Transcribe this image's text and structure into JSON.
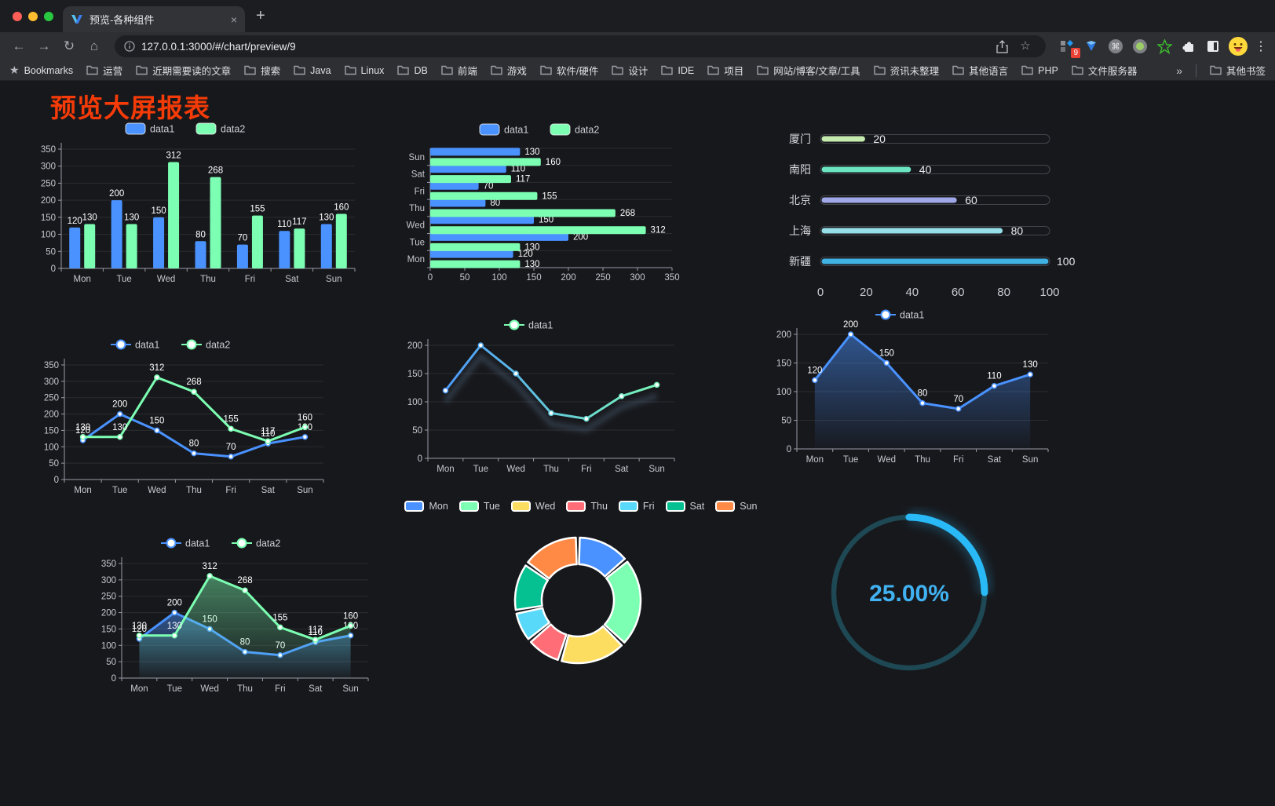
{
  "browser": {
    "tab_title": "预览-各种组件",
    "url": "127.0.0.1:3000/#/chart/preview/9",
    "extension_badge": "9",
    "bookmarks_label": "Bookmarks",
    "bookmarks": [
      "运营",
      "近期需要读的文章",
      "搜索",
      "Java",
      "Linux",
      "DB",
      "前端",
      "游戏",
      "软件/硬件",
      "设计",
      "IDE",
      "项目",
      "网站/博客/文章/工具",
      "资讯未整理",
      "其他语言",
      "PHP",
      "文件服务器"
    ],
    "bookmarks_overflow": "»",
    "other_bookmarks": "其他书签",
    "icons": {
      "close": "×",
      "new_tab": "+",
      "back": "←",
      "forward": "→",
      "reload": "↻",
      "home": "⌂",
      "star": "☆",
      "bookmark_star": "★",
      "kebab": "⋮"
    }
  },
  "page": {
    "title": "预览大屏报表",
    "title_color": "#f53b08"
  },
  "palette": {
    "blue": "#4992ff",
    "green": "#7cffb2",
    "axis_text": "#c6c8cf",
    "axis_line": "#9a9ca6",
    "grid": "rgba(255,255,255,0.09)",
    "value_label": "#ffffff",
    "legend_text": "#cbcdd4"
  },
  "chart_data": [
    {
      "id": "bar-vertical",
      "type": "bar",
      "categories": [
        "Mon",
        "Tue",
        "Wed",
        "Thu",
        "Fri",
        "Sat",
        "Sun"
      ],
      "series": [
        {
          "name": "data1",
          "color": "#4992ff",
          "values": [
            120,
            200,
            150,
            80,
            70,
            110,
            130
          ]
        },
        {
          "name": "data2",
          "color": "#7cffb2",
          "values": [
            130,
            130,
            312,
            268,
            155,
            117,
            160
          ]
        }
      ],
      "ylim": [
        0,
        350
      ],
      "yticks": [
        0,
        50,
        100,
        150,
        200,
        250,
        300,
        350
      ],
      "grid": true,
      "legend_position": "top",
      "labels": true
    },
    {
      "id": "bar-horizontal",
      "type": "bar-horizontal",
      "categories": [
        "Mon",
        "Tue",
        "Wed",
        "Thu",
        "Fri",
        "Sat",
        "Sun"
      ],
      "series": [
        {
          "name": "data1",
          "color": "#4992ff",
          "values": [
            120,
            200,
            150,
            80,
            70,
            110,
            130
          ]
        },
        {
          "name": "data2",
          "color": "#7cffb2",
          "values": [
            130,
            130,
            312,
            268,
            155,
            117,
            160
          ]
        }
      ],
      "xlim": [
        0,
        350
      ],
      "xticks": [
        0,
        50,
        100,
        150,
        200,
        250,
        300,
        350
      ],
      "grid": true,
      "legend_position": "top",
      "labels": true
    },
    {
      "id": "progress-bars",
      "type": "progress",
      "items": [
        {
          "label": "厦门",
          "value": 20,
          "color": "#c4ebad"
        },
        {
          "label": "南阳",
          "value": 40,
          "color": "#6be6c1"
        },
        {
          "label": "北京",
          "value": 60,
          "color": "#a0a7e6"
        },
        {
          "label": "上海",
          "value": 80,
          "color": "#96dee8"
        },
        {
          "label": "新疆",
          "value": 100,
          "color": "#3fb1e3"
        }
      ],
      "max": 100,
      "xticks": [
        0,
        20,
        40,
        60,
        80,
        100
      ]
    },
    {
      "id": "line-dual",
      "type": "line",
      "categories": [
        "Mon",
        "Tue",
        "Wed",
        "Thu",
        "Fri",
        "Sat",
        "Sun"
      ],
      "series": [
        {
          "name": "data1",
          "color": "#4992ff",
          "values": [
            120,
            200,
            150,
            80,
            70,
            110,
            130
          ]
        },
        {
          "name": "data2",
          "color": "#7cffb2",
          "values": [
            130,
            130,
            312,
            268,
            155,
            117,
            160
          ]
        }
      ],
      "ylim": [
        0,
        350
      ],
      "yticks": [
        0,
        50,
        100,
        150,
        200,
        250,
        300,
        350
      ],
      "grid": true,
      "legend_position": "top",
      "labels": true
    },
    {
      "id": "line-gradient",
      "type": "line",
      "categories": [
        "Mon",
        "Tue",
        "Wed",
        "Thu",
        "Fri",
        "Sat",
        "Sun"
      ],
      "series": [
        {
          "name": "data1",
          "gradient": [
            "#4992ff",
            "#7cffb2"
          ],
          "values": [
            120,
            200,
            150,
            80,
            70,
            110,
            130
          ],
          "shadow": true
        }
      ],
      "ylim": [
        0,
        200
      ],
      "yticks": [
        0,
        50,
        100,
        150,
        200
      ],
      "grid": true,
      "legend_position": "top",
      "labels": false
    },
    {
      "id": "area-single",
      "type": "area",
      "categories": [
        "Mon",
        "Tue",
        "Wed",
        "Thu",
        "Fri",
        "Sat",
        "Sun"
      ],
      "series": [
        {
          "name": "data1",
          "color": "#4992ff",
          "values": [
            120,
            200,
            150,
            80,
            70,
            110,
            130
          ],
          "area_opacity": 0.5
        }
      ],
      "ylim": [
        0,
        200
      ],
      "yticks": [
        0,
        50,
        100,
        150,
        200
      ],
      "grid": true,
      "legend_position": "top",
      "labels": true
    },
    {
      "id": "area-dual",
      "type": "area",
      "categories": [
        "Mon",
        "Tue",
        "Wed",
        "Thu",
        "Fri",
        "Sat",
        "Sun"
      ],
      "series": [
        {
          "name": "data1",
          "color": "#4992ff",
          "values": [
            120,
            200,
            150,
            80,
            70,
            110,
            130
          ],
          "area_opacity": 0.5
        },
        {
          "name": "data2",
          "color": "#7cffb2",
          "values": [
            130,
            130,
            312,
            268,
            155,
            117,
            160
          ],
          "area_opacity": 0.45
        }
      ],
      "ylim": [
        0,
        350
      ],
      "yticks": [
        0,
        50,
        100,
        150,
        200,
        250,
        300,
        350
      ],
      "grid": true,
      "legend_position": "top",
      "labels": true
    },
    {
      "id": "donut",
      "type": "pie",
      "categories": [
        "Mon",
        "Tue",
        "Wed",
        "Thu",
        "Fri",
        "Sat",
        "Sun"
      ],
      "values": [
        120,
        200,
        150,
        80,
        70,
        110,
        130
      ],
      "colors": [
        "#4992ff",
        "#7cffb2",
        "#fddd60",
        "#ff6e76",
        "#58d9f9",
        "#05c091",
        "#ff8a45"
      ],
      "inner_radius_ratio": 0.57,
      "legend_position": "top"
    },
    {
      "id": "gauge",
      "type": "gauge",
      "value": 25,
      "display": "25.00%",
      "color": "#29b9f6",
      "track_color": "#1d4854",
      "text_color": "#41b2f1"
    }
  ]
}
